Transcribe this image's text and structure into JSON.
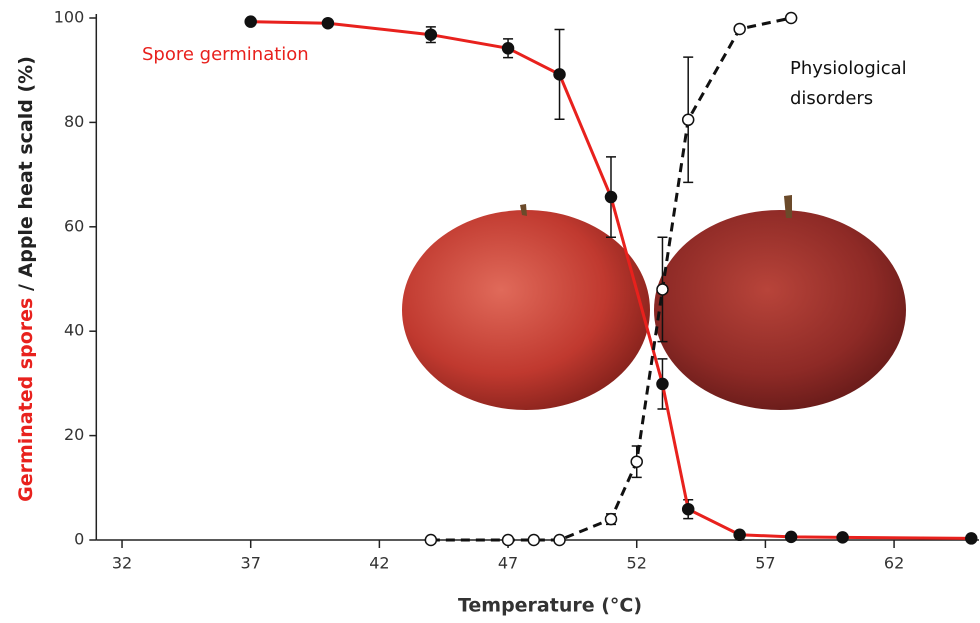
{
  "chart_data": {
    "type": "line",
    "y_label_parts": [
      "Germinated spores",
      " / Apple heat scald (%)"
    ],
    "y_label_colors": [
      "#e8211d",
      "#222222"
    ],
    "x_label": "Temperature (°C)",
    "xlim": [
      31,
      65.3
    ],
    "xticks": [
      32,
      37,
      42,
      47,
      52,
      57,
      62
    ],
    "ylim": [
      0,
      100
    ],
    "yticks": [
      0,
      20,
      40,
      60,
      80,
      100
    ],
    "series": [
      {
        "name": "Spore germination",
        "color": "#e8211d",
        "marker": "filled",
        "line_style": "solid",
        "x": [
          37,
          40,
          44,
          47,
          49,
          51,
          53,
          54,
          56,
          58,
          60,
          65
        ],
        "values": [
          99.3,
          99.0,
          96.8,
          94.2,
          89.2,
          65.7,
          29.9,
          5.9,
          1.0,
          0.6,
          0.5,
          0.3
        ],
        "errors": [
          null,
          null,
          1.5,
          1.8,
          8.6,
          7.7,
          4.8,
          1.8,
          null,
          null,
          null,
          null
        ]
      },
      {
        "name": "Physiological disorders",
        "color": "#111111",
        "marker": "open",
        "line_style": "dashed",
        "x": [
          44,
          47,
          48,
          49,
          51,
          52,
          53,
          54,
          56,
          58
        ],
        "values": [
          0,
          0,
          0,
          0,
          4,
          15,
          48,
          80.5,
          97.9,
          100
        ],
        "errors": [
          null,
          null,
          null,
          null,
          1,
          3,
          10,
          12,
          null,
          null
        ]
      }
    ]
  }
}
